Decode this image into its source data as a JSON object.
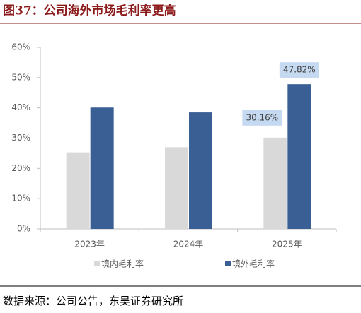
{
  "title": "图37：公司海外市场毛利率更高",
  "source": "数据来源：公司公告，东吴证券研究所",
  "chart_data": {
    "type": "bar",
    "categories": [
      "2023年",
      "2024年",
      "2025年"
    ],
    "series": [
      {
        "name": "境内毛利率",
        "color": "#d9d9d9",
        "values": [
          25.3,
          27.0,
          30.16
        ],
        "value_labels": [
          null,
          null,
          "30.16%"
        ]
      },
      {
        "name": "境外毛利率",
        "color": "#3a5f94",
        "values": [
          40.1,
          38.5,
          47.82
        ],
        "value_labels": [
          null,
          null,
          "47.82%"
        ]
      }
    ],
    "ylim": [
      0,
      60
    ],
    "yticks": [
      {
        "value": 0,
        "label": "0%"
      },
      {
        "value": 10,
        "label": "10%"
      },
      {
        "value": 20,
        "label": "20%"
      },
      {
        "value": 30,
        "label": "30%"
      },
      {
        "value": 40,
        "label": "40%"
      },
      {
        "value": 50,
        "label": "50%"
      },
      {
        "value": 60,
        "label": "60%"
      }
    ],
    "grid": false,
    "legend": "bottom"
  }
}
